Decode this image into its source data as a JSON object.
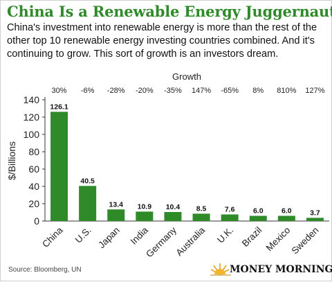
{
  "title": "China Is a Renewable Energy Juggernaut",
  "subtitle": "China's investment into renewable energy is more than the rest of the other top 10 renewable energy investing countries combined. And it's continuing to grow. This sort of growth is an investors dream.",
  "source": "Source: Bloomberg, UN",
  "brand": "MONEY MORNING",
  "colors": {
    "bar": "#2f8a2a",
    "title": "#2f8a2a",
    "axis": "#333333"
  },
  "chart_data": {
    "type": "bar",
    "categories": [
      "China",
      "U.S.",
      "Japan",
      "India",
      "Germany",
      "Australia",
      "U.K.",
      "Brazil",
      "Mexico",
      "Sweden"
    ],
    "values": [
      126.1,
      40.5,
      13.4,
      10.9,
      10.4,
      8.5,
      7.6,
      6.0,
      6.0,
      3.7
    ],
    "value_labels": [
      "126.1",
      "40.5",
      "13.4",
      "10.9",
      "10.4",
      "8.5",
      "7.6",
      "6.0",
      "6.0",
      "3.7"
    ],
    "growth_title": "Growth",
    "growth": [
      "30%",
      "-6%",
      "-28%",
      "-20%",
      "-35%",
      "147%",
      "-65%",
      "8%",
      "810%",
      "127%"
    ],
    "ylabel": "$/Billions",
    "xlabel": "",
    "ylim": [
      0,
      140
    ],
    "yticks": [
      0,
      20,
      40,
      60,
      80,
      100,
      120,
      140
    ],
    "grid": false,
    "legend": "none"
  }
}
